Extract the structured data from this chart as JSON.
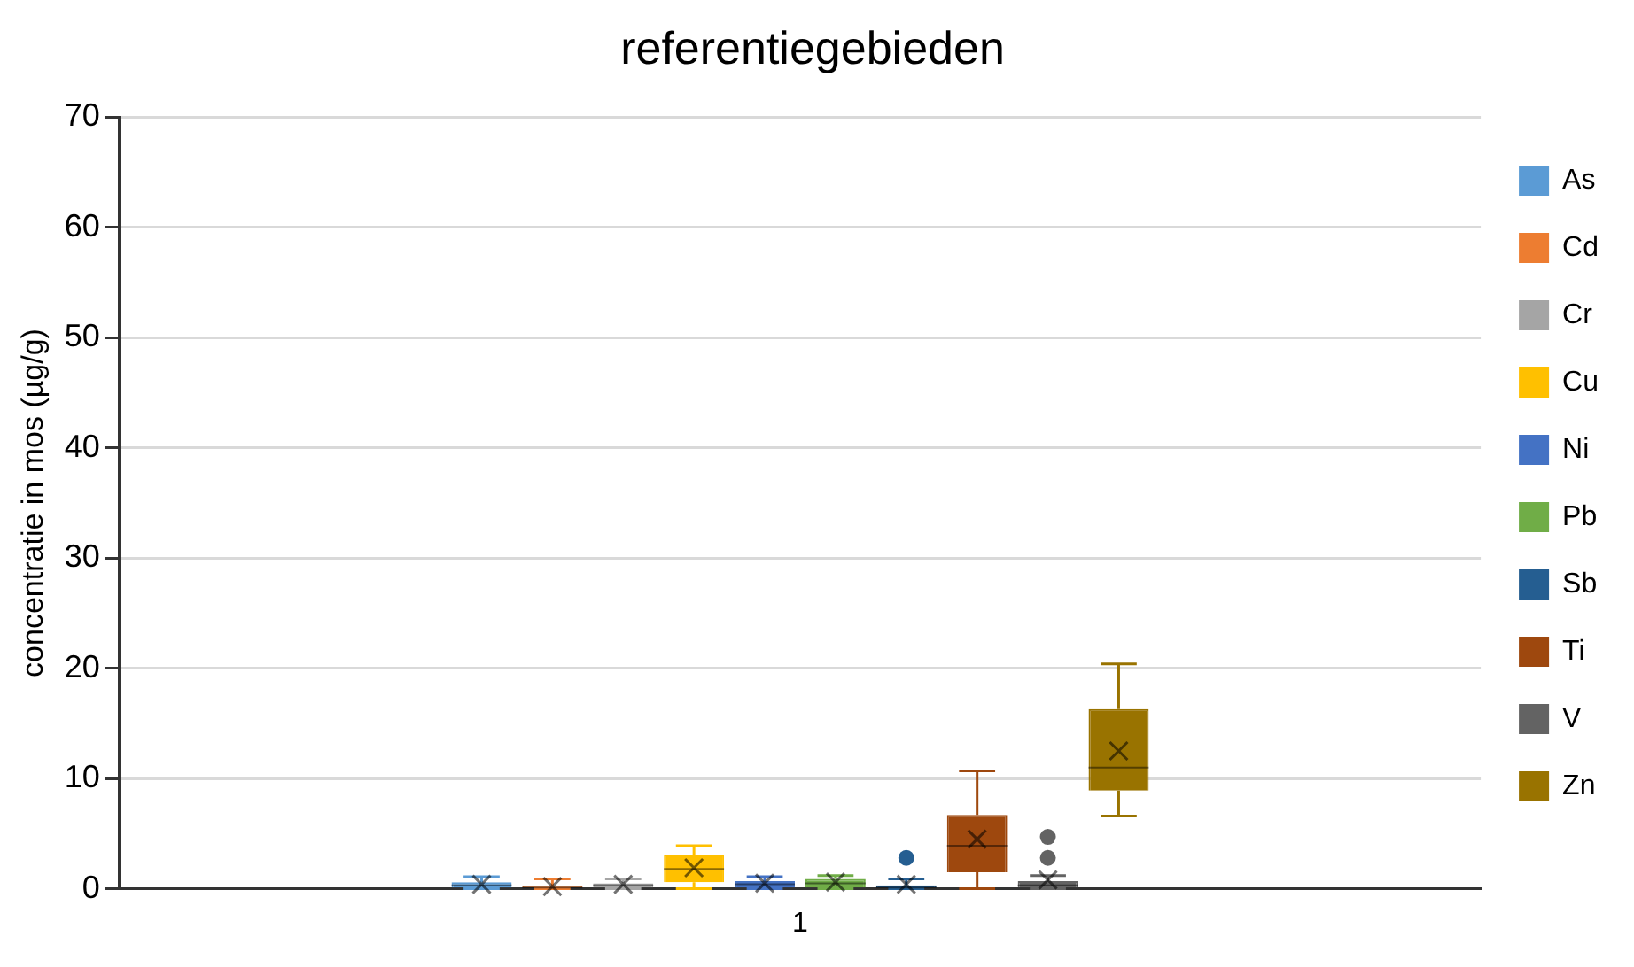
{
  "chart_data": {
    "type": "box",
    "title": "referentiegebieden",
    "ylabel": "concentratie in mos (µg/g)",
    "categories": [
      "1"
    ],
    "ylim": [
      0,
      70
    ],
    "yticks": [
      0,
      10,
      20,
      30,
      40,
      50,
      60,
      70
    ],
    "grid": "y",
    "legend": "right",
    "series": [
      {
        "name": "As",
        "color": "#5b9bd5",
        "boxes": [
          {
            "low": 0,
            "q1": 0.1,
            "median": 0.3,
            "q3": 0.6,
            "high": 1.1,
            "mean": 0.4
          }
        ]
      },
      {
        "name": "Cd",
        "color": "#ed7d31",
        "boxes": [
          {
            "low": 0,
            "q1": 0,
            "median": 0.1,
            "q3": 0.2,
            "high": 0.9,
            "mean": 0.2
          }
        ]
      },
      {
        "name": "Cr",
        "color": "#a5a5a5",
        "boxes": [
          {
            "low": 0,
            "q1": 0.1,
            "median": 0.3,
            "q3": 0.5,
            "high": 0.9,
            "mean": 0.4
          }
        ]
      },
      {
        "name": "Cu",
        "color": "#ffc000",
        "boxes": [
          {
            "low": 0,
            "q1": 0.6,
            "median": 1.8,
            "q3": 3.1,
            "high": 3.9,
            "mean": 1.9
          }
        ]
      },
      {
        "name": "Ni",
        "color": "#4472c4",
        "boxes": [
          {
            "low": 0,
            "q1": 0.1,
            "median": 0.4,
            "q3": 0.7,
            "high": 1.1,
            "mean": 0.5
          }
        ]
      },
      {
        "name": "Pb",
        "color": "#70ad47",
        "boxes": [
          {
            "low": 0,
            "q1": 0.1,
            "median": 0.5,
            "q3": 0.9,
            "high": 1.2,
            "mean": 0.6
          }
        ]
      },
      {
        "name": "Sb",
        "color": "#255e91",
        "boxes": [
          {
            "low": 0,
            "q1": 0,
            "median": 0.1,
            "q3": 0.3,
            "high": 0.9,
            "mean": 0.4,
            "outliers": [
              2.8
            ]
          }
        ]
      },
      {
        "name": "Ti",
        "color": "#9e480e",
        "boxes": [
          {
            "low": 0,
            "q1": 1.5,
            "median": 3.9,
            "q3": 6.7,
            "high": 10.7,
            "mean": 4.5
          }
        ]
      },
      {
        "name": "V",
        "color": "#636363",
        "boxes": [
          {
            "low": 0,
            "q1": 0.1,
            "median": 0.3,
            "q3": 0.7,
            "high": 1.2,
            "mean": 0.8,
            "outliers": [
              2.8,
              4.7
            ]
          }
        ]
      },
      {
        "name": "Zn",
        "color": "#997300",
        "boxes": [
          {
            "low": 6.6,
            "q1": 8.9,
            "median": 11,
            "q3": 16.3,
            "high": 20.4,
            "mean": 12.5
          }
        ]
      }
    ]
  }
}
